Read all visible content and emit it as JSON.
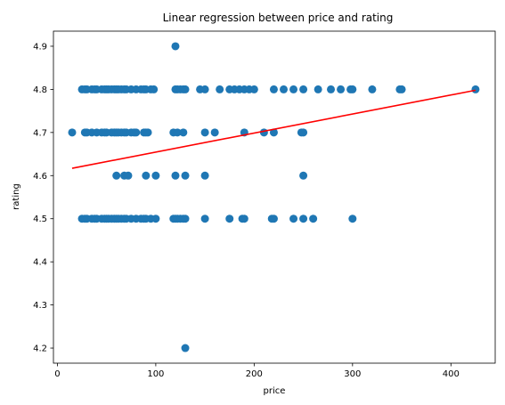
{
  "chart_data": {
    "type": "scatter",
    "title": "Linear regression between price and rating",
    "xlabel": "price",
    "ylabel": "rating",
    "xlim": [
      -4,
      445
    ],
    "ylim": [
      4.165,
      4.935
    ],
    "xticks": [
      0,
      100,
      200,
      300,
      400
    ],
    "yticks": [
      4.2,
      4.3,
      4.4,
      4.5,
      4.6,
      4.7,
      4.8,
      4.9
    ],
    "grid": false,
    "colors": {
      "points": "#1f77b4",
      "regression": "#ff0000",
      "axes": "#000000",
      "background": "#ffffff"
    },
    "series": [
      {
        "points": [
          [
            120,
            4.9
          ],
          [
            25,
            4.8
          ],
          [
            28,
            4.8
          ],
          [
            30,
            4.8
          ],
          [
            35,
            4.8
          ],
          [
            38,
            4.8
          ],
          [
            40,
            4.8
          ],
          [
            45,
            4.8
          ],
          [
            48,
            4.8
          ],
          [
            50,
            4.8
          ],
          [
            52,
            4.8
          ],
          [
            55,
            4.8
          ],
          [
            58,
            4.8
          ],
          [
            60,
            4.8
          ],
          [
            62,
            4.8
          ],
          [
            65,
            4.8
          ],
          [
            68,
            4.8
          ],
          [
            70,
            4.8
          ],
          [
            75,
            4.8
          ],
          [
            80,
            4.8
          ],
          [
            85,
            4.8
          ],
          [
            88,
            4.8
          ],
          [
            90,
            4.8
          ],
          [
            95,
            4.8
          ],
          [
            98,
            4.8
          ],
          [
            120,
            4.8
          ],
          [
            122,
            4.8
          ],
          [
            125,
            4.8
          ],
          [
            128,
            4.8
          ],
          [
            130,
            4.8
          ],
          [
            145,
            4.8
          ],
          [
            150,
            4.8
          ],
          [
            165,
            4.8
          ],
          [
            175,
            4.8
          ],
          [
            180,
            4.8
          ],
          [
            185,
            4.8
          ],
          [
            190,
            4.8
          ],
          [
            195,
            4.8
          ],
          [
            200,
            4.8
          ],
          [
            220,
            4.8
          ],
          [
            230,
            4.8
          ],
          [
            240,
            4.8
          ],
          [
            250,
            4.8
          ],
          [
            265,
            4.8
          ],
          [
            278,
            4.8
          ],
          [
            288,
            4.8
          ],
          [
            298,
            4.8
          ],
          [
            300,
            4.8
          ],
          [
            320,
            4.8
          ],
          [
            348,
            4.8
          ],
          [
            350,
            4.8
          ],
          [
            425,
            4.8
          ],
          [
            15,
            4.7
          ],
          [
            28,
            4.7
          ],
          [
            30,
            4.7
          ],
          [
            35,
            4.7
          ],
          [
            40,
            4.7
          ],
          [
            45,
            4.7
          ],
          [
            48,
            4.7
          ],
          [
            50,
            4.7
          ],
          [
            55,
            4.7
          ],
          [
            58,
            4.7
          ],
          [
            60,
            4.7
          ],
          [
            62,
            4.7
          ],
          [
            65,
            4.7
          ],
          [
            68,
            4.7
          ],
          [
            70,
            4.7
          ],
          [
            75,
            4.7
          ],
          [
            78,
            4.7
          ],
          [
            80,
            4.7
          ],
          [
            88,
            4.7
          ],
          [
            90,
            4.7
          ],
          [
            92,
            4.7
          ],
          [
            118,
            4.7
          ],
          [
            122,
            4.7
          ],
          [
            128,
            4.7
          ],
          [
            150,
            4.7
          ],
          [
            160,
            4.7
          ],
          [
            190,
            4.7
          ],
          [
            210,
            4.7
          ],
          [
            220,
            4.7
          ],
          [
            248,
            4.7
          ],
          [
            250,
            4.7
          ],
          [
            60,
            4.6
          ],
          [
            68,
            4.6
          ],
          [
            72,
            4.6
          ],
          [
            90,
            4.6
          ],
          [
            100,
            4.6
          ],
          [
            120,
            4.6
          ],
          [
            130,
            4.6
          ],
          [
            150,
            4.6
          ],
          [
            250,
            4.6
          ],
          [
            25,
            4.5
          ],
          [
            28,
            4.5
          ],
          [
            30,
            4.5
          ],
          [
            35,
            4.5
          ],
          [
            38,
            4.5
          ],
          [
            40,
            4.5
          ],
          [
            45,
            4.5
          ],
          [
            48,
            4.5
          ],
          [
            50,
            4.5
          ],
          [
            52,
            4.5
          ],
          [
            55,
            4.5
          ],
          [
            58,
            4.5
          ],
          [
            60,
            4.5
          ],
          [
            62,
            4.5
          ],
          [
            65,
            4.5
          ],
          [
            68,
            4.5
          ],
          [
            70,
            4.5
          ],
          [
            75,
            4.5
          ],
          [
            80,
            4.5
          ],
          [
            85,
            4.5
          ],
          [
            88,
            4.5
          ],
          [
            90,
            4.5
          ],
          [
            95,
            4.5
          ],
          [
            100,
            4.5
          ],
          [
            118,
            4.5
          ],
          [
            120,
            4.5
          ],
          [
            122,
            4.5
          ],
          [
            125,
            4.5
          ],
          [
            128,
            4.5
          ],
          [
            130,
            4.5
          ],
          [
            150,
            4.5
          ],
          [
            175,
            4.5
          ],
          [
            188,
            4.5
          ],
          [
            190,
            4.5
          ],
          [
            218,
            4.5
          ],
          [
            220,
            4.5
          ],
          [
            240,
            4.5
          ],
          [
            250,
            4.5
          ],
          [
            260,
            4.5
          ],
          [
            300,
            4.5
          ],
          [
            130,
            4.2
          ]
        ]
      }
    ],
    "regression_line": {
      "x": [
        15,
        425
      ],
      "y": [
        4.617,
        4.798
      ]
    }
  }
}
